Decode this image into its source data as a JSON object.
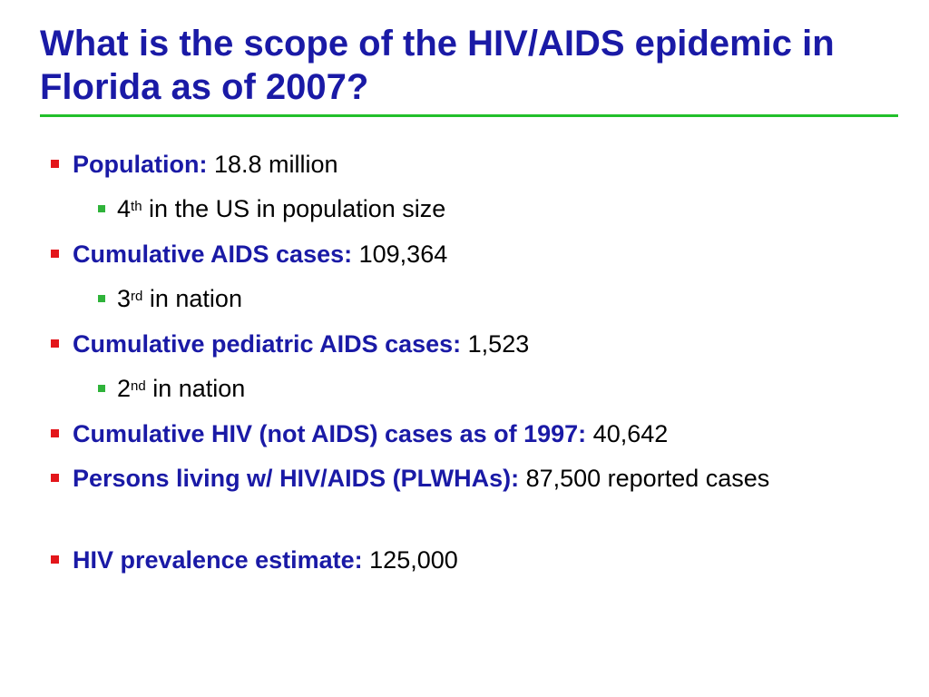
{
  "slide": {
    "title": "What is the scope of the HIV/AIDS epidemic in Florida as of 2007?"
  },
  "bullets": [
    {
      "label": "Population:",
      "value": " 18.8 million"
    },
    {
      "rank": "4",
      "suffix": "th",
      "rest": " in the US in population size"
    },
    {
      "label": "Cumulative AIDS cases:",
      "value": " 109,364"
    },
    {
      "rank": "3",
      "suffix": "rd",
      "rest": " in nation"
    },
    {
      "label": "Cumulative pediatric AIDS cases:",
      "value": " 1,523"
    },
    {
      "rank": "2",
      "suffix": "nd",
      "rest": " in nation"
    },
    {
      "label": "Cumulative HIV (not AIDS) cases as of 1997:",
      "value": " 40,642"
    },
    {
      "label": "Persons living w/ HIV/AIDS (PLWHAs):",
      "value": " 87,500 reported cases"
    },
    {
      "label": "HIV prevalence estimate:",
      "value": " 125,000"
    }
  ],
  "colors": {
    "title": "#1a1aa6",
    "rule": "#22c02a",
    "bullet_main": "#e3161b",
    "bullet_sub": "#2fb33a"
  }
}
